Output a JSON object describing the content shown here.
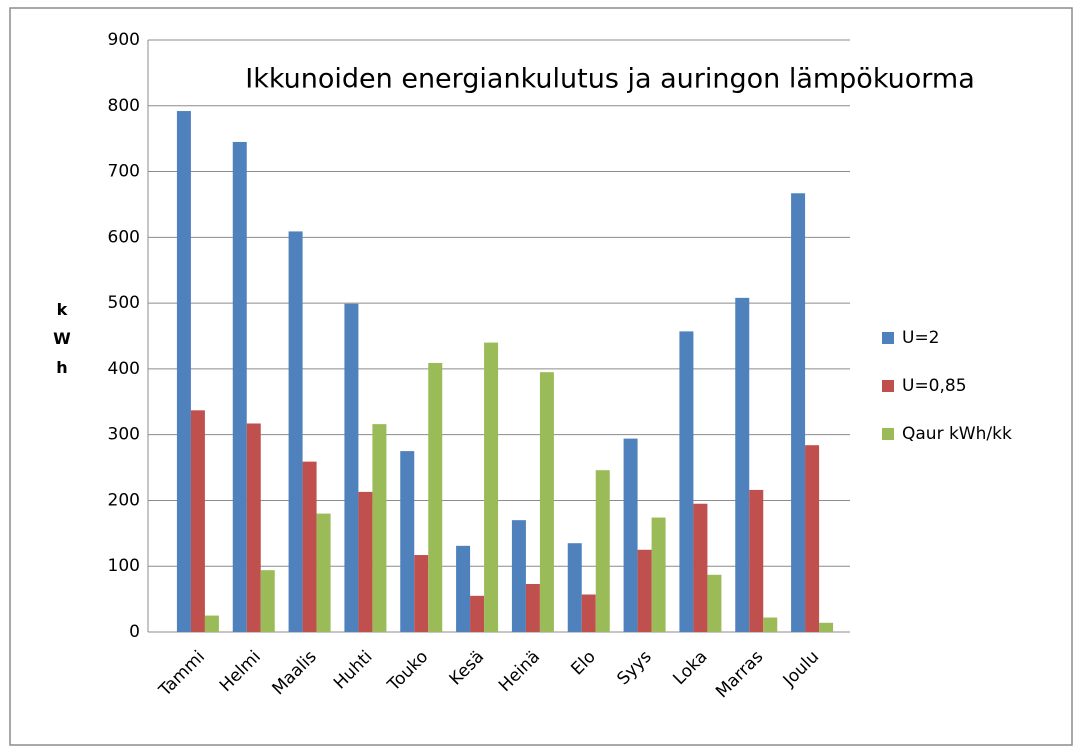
{
  "chart_data": {
    "type": "bar",
    "title": "Ikkunoiden energiankulutus ja auringon lämpökuorma",
    "y_label": "kWh",
    "categories": [
      "Tammi",
      "Helmi",
      "Maalis",
      "Huhti",
      "Touko",
      "Kesä",
      "Heinä",
      "Elo",
      "Syys",
      "Loka",
      "Marras",
      "Joulu"
    ],
    "series": [
      {
        "name": "U=2",
        "color": "#4f81bd",
        "values": [
          792,
          745,
          609,
          499,
          275,
          131,
          170,
          135,
          294,
          457,
          508,
          667
        ]
      },
      {
        "name": "U=0,85",
        "color": "#c0504d",
        "values": [
          337,
          317,
          259,
          213,
          117,
          55,
          73,
          57,
          125,
          195,
          216,
          284
        ]
      },
      {
        "name": "Qaur kWh/kk",
        "color": "#9bbb59",
        "values": [
          25,
          94,
          180,
          316,
          409,
          440,
          395,
          246,
          174,
          87,
          22,
          14
        ]
      }
    ],
    "ylim": [
      0,
      900
    ],
    "yticks": [
      0,
      100,
      200,
      300,
      400,
      500,
      600,
      700,
      800,
      900
    ],
    "grid": true,
    "legend": "right"
  }
}
